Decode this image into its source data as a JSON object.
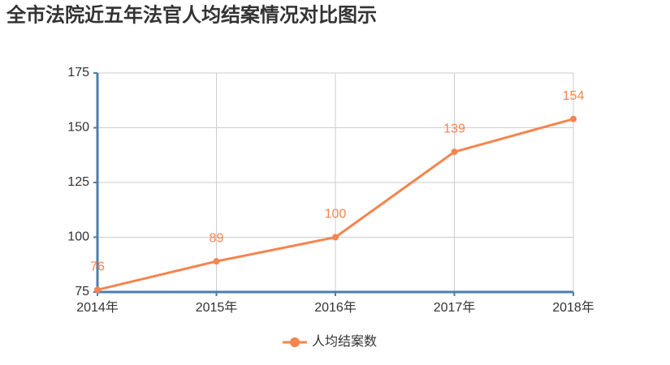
{
  "chart_data": {
    "type": "line",
    "title": "全市法院近五年法官人均结案情况对比图示",
    "categories": [
      "2014年",
      "2015年",
      "2016年",
      "2017年",
      "2018年"
    ],
    "series": [
      {
        "name": "人均结案数",
        "color": "#f5844d",
        "values": [
          76,
          89,
          100,
          139,
          154
        ]
      }
    ],
    "ylim": [
      75,
      175
    ],
    "yticks": [
      75,
      100,
      125,
      150,
      175
    ],
    "grid": true,
    "legend": "bottom"
  }
}
